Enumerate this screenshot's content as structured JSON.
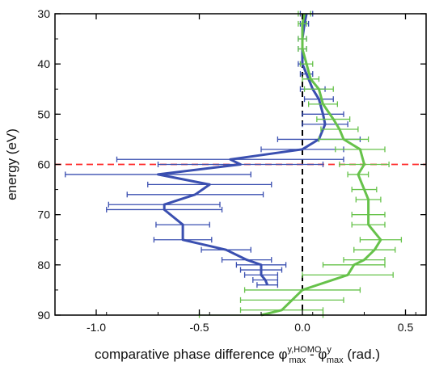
{
  "chart_data": {
    "type": "line",
    "orientation": "horizontal-values",
    "title": "",
    "xlabel": {
      "prefix": "comparative phase difference ",
      "phi": "φ",
      "sup1": "y,HOMO",
      "sub1": "max",
      "minus": " - ",
      "sup2": "y",
      "sub2": "max",
      "suffix": " (rad.)"
    },
    "ylabel": "energy (eV)",
    "xlim": [
      -1.2,
      0.6
    ],
    "ylim": [
      30,
      90
    ],
    "y_inverted": true,
    "xticks": [
      -1.0,
      -0.5,
      0.0,
      0.5
    ],
    "xtick_labels": [
      "-1.0",
      "-0.5",
      "0.0",
      "0.5"
    ],
    "yticks": [
      30,
      40,
      50,
      60,
      70,
      80,
      90
    ],
    "ytick_labels": [
      "30",
      "40",
      "50",
      "60",
      "70",
      "80",
      "90"
    ],
    "grid": false,
    "legend": "none",
    "reference_lines": [
      {
        "orientation": "vertical",
        "x": 0.0,
        "style": "dashed",
        "color": "#000000"
      },
      {
        "orientation": "horizontal",
        "y": 60,
        "style": "dashed",
        "color": "#ff2a2a"
      }
    ],
    "series": [
      {
        "color": "#3a4fb0",
        "points": [
          {
            "y": 30,
            "x": 0.02,
            "err": 0.03
          },
          {
            "y": 32,
            "x": 0.01,
            "err": 0.02
          },
          {
            "y": 35,
            "x": 0.0,
            "err": 0.02
          },
          {
            "y": 37,
            "x": 0.0,
            "err": 0.02
          },
          {
            "y": 40,
            "x": 0.0,
            "err": 0.02
          },
          {
            "y": 42,
            "x": 0.02,
            "err": 0.03
          },
          {
            "y": 45,
            "x": 0.05,
            "err": 0.06
          },
          {
            "y": 47,
            "x": 0.08,
            "err": 0.07
          },
          {
            "y": 50,
            "x": 0.1,
            "err": 0.1
          },
          {
            "y": 52,
            "x": 0.11,
            "err": 0.11
          },
          {
            "y": 55,
            "x": 0.08,
            "err": 0.2
          },
          {
            "y": 57,
            "x": 0.0,
            "err": 0.2
          },
          {
            "y": 59,
            "x": -0.35,
            "err": 0.55
          },
          {
            "y": 60,
            "x": -0.3,
            "err": 0.4
          },
          {
            "y": 62,
            "x": -0.7,
            "err": 0.45
          },
          {
            "y": 64,
            "x": -0.45,
            "err": 0.3
          },
          {
            "y": 66,
            "x": -0.52,
            "err": 0.33
          },
          {
            "y": 68,
            "x": -0.67,
            "err": 0.27
          },
          {
            "y": 69,
            "x": -0.67,
            "err": 0.28
          },
          {
            "y": 72,
            "x": -0.58,
            "err": 0.13
          },
          {
            "y": 75,
            "x": -0.58,
            "err": 0.14
          },
          {
            "y": 77,
            "x": -0.37,
            "err": 0.12
          },
          {
            "y": 79,
            "x": -0.27,
            "err": 0.12
          },
          {
            "y": 80,
            "x": -0.2,
            "err": 0.12
          },
          {
            "y": 81,
            "x": -0.2,
            "err": 0.1
          },
          {
            "y": 82,
            "x": -0.2,
            "err": 0.08
          },
          {
            "y": 83,
            "x": -0.18,
            "err": 0.06
          },
          {
            "y": 84,
            "x": -0.17,
            "err": 0.05
          }
        ]
      },
      {
        "color": "#66c24a",
        "points": [
          {
            "y": 30,
            "x": 0.01,
            "err": 0.03
          },
          {
            "y": 32,
            "x": 0.0,
            "err": 0.02
          },
          {
            "y": 35,
            "x": 0.0,
            "err": 0.02
          },
          {
            "y": 37,
            "x": 0.0,
            "err": 0.02
          },
          {
            "y": 40,
            "x": 0.02,
            "err": 0.03
          },
          {
            "y": 43,
            "x": 0.04,
            "err": 0.04
          },
          {
            "y": 45,
            "x": 0.08,
            "err": 0.07
          },
          {
            "y": 48,
            "x": 0.1,
            "err": 0.07
          },
          {
            "y": 51,
            "x": 0.15,
            "err": 0.08
          },
          {
            "y": 53,
            "x": 0.18,
            "err": 0.09
          },
          {
            "y": 55,
            "x": 0.2,
            "err": 0.12
          },
          {
            "y": 57,
            "x": 0.28,
            "err": 0.12
          },
          {
            "y": 60,
            "x": 0.3,
            "err": 0.12
          },
          {
            "y": 62,
            "x": 0.27,
            "err": 0.05
          },
          {
            "y": 65,
            "x": 0.3,
            "err": 0.06
          },
          {
            "y": 67,
            "x": 0.32,
            "err": 0.06
          },
          {
            "y": 70,
            "x": 0.32,
            "err": 0.08
          },
          {
            "y": 72,
            "x": 0.32,
            "err": 0.08
          },
          {
            "y": 75,
            "x": 0.38,
            "err": 0.1
          },
          {
            "y": 77,
            "x": 0.35,
            "err": 0.1
          },
          {
            "y": 79,
            "x": 0.3,
            "err": 0.1
          },
          {
            "y": 80,
            "x": 0.25,
            "err": 0.15
          },
          {
            "y": 82,
            "x": 0.22,
            "err": 0.22
          },
          {
            "y": 85,
            "x": 0.0,
            "err": 0.28
          },
          {
            "y": 87,
            "x": -0.05,
            "err": 0.25
          },
          {
            "y": 89,
            "x": -0.1,
            "err": 0.2
          },
          {
            "y": 90,
            "x": -0.2,
            "err": 0.3
          }
        ]
      }
    ]
  }
}
